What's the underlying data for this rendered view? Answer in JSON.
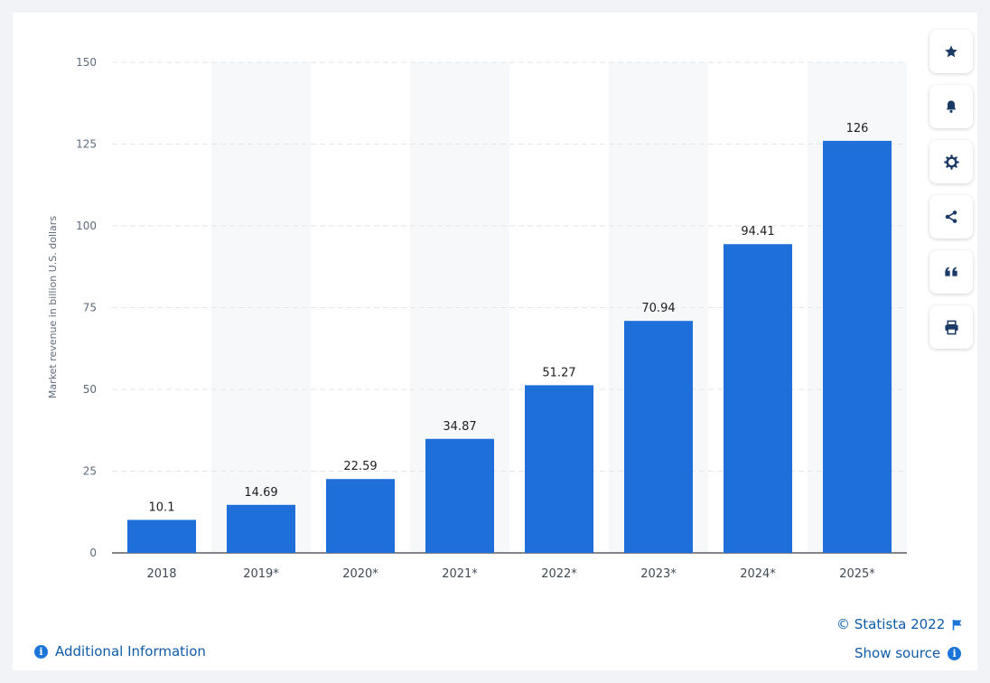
{
  "chart_data": {
    "type": "bar",
    "title": "",
    "xlabel": "",
    "ylabel": "Market revenue in billion U.S. dollars",
    "categories": [
      "2018",
      "2019*",
      "2020*",
      "2021*",
      "2022*",
      "2023*",
      "2024*",
      "2025*"
    ],
    "values": [
      10.1,
      14.69,
      22.59,
      34.87,
      51.27,
      70.94,
      94.41,
      126
    ],
    "value_labels": [
      "10.1",
      "14.69",
      "22.59",
      "34.87",
      "51.27",
      "70.94",
      "94.41",
      "126"
    ],
    "ylim": [
      0,
      150
    ],
    "yticks": [
      "0",
      "25",
      "50",
      "75",
      "100",
      "125",
      "150"
    ],
    "grid": true,
    "bar_color": "#1f6fdb"
  },
  "toolbar": {
    "buttons": [
      {
        "name": "favorite-button",
        "icon": "star-icon"
      },
      {
        "name": "notification-button",
        "icon": "bell-icon"
      },
      {
        "name": "settings-button",
        "icon": "gear-icon"
      },
      {
        "name": "share-button",
        "icon": "share-icon"
      },
      {
        "name": "cite-button",
        "icon": "quote-icon"
      },
      {
        "name": "print-button",
        "icon": "printer-icon"
      }
    ]
  },
  "footer": {
    "copyright": "© Statista 2022",
    "additional_info": "Additional Information",
    "show_source": "Show source"
  }
}
